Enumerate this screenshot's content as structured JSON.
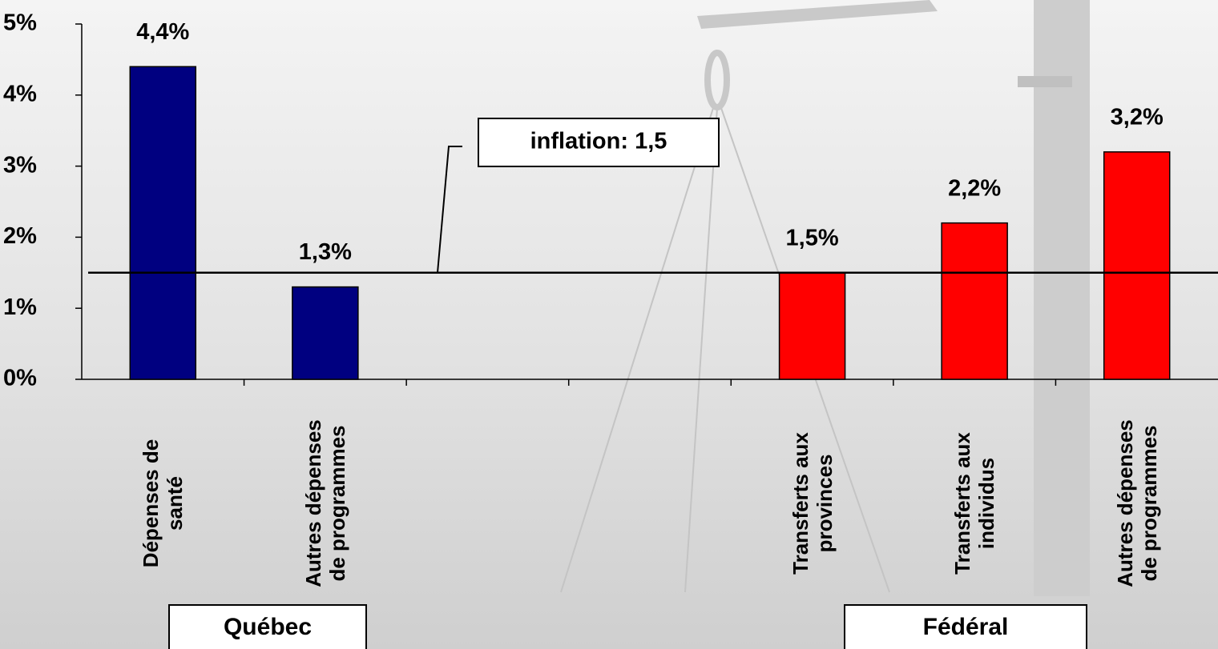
{
  "chart_data": {
    "type": "bar",
    "categories": [
      "Dépenses de santé",
      "Autres dépenses de programmes",
      null,
      null,
      "Transferts aux provinces",
      "Transferts aux individus",
      "Autres dépenses de programmes"
    ],
    "values": [
      4.4,
      1.3,
      null,
      null,
      1.5,
      2.2,
      3.2
    ],
    "value_labels": [
      "4,4%",
      "1,3%",
      null,
      null,
      "1,5%",
      "2,2%",
      "3,2%"
    ],
    "colors": [
      "#000080",
      "#000080",
      null,
      null,
      "#ff0000",
      "#ff0000",
      "#ff0000"
    ],
    "ylim": [
      0,
      5
    ],
    "yticks": [
      {
        "value": 0,
        "label": "0%"
      },
      {
        "value": 1,
        "label": "1%"
      },
      {
        "value": 2,
        "label": "2%"
      },
      {
        "value": 3,
        "label": "3%"
      },
      {
        "value": 4,
        "label": "4%"
      },
      {
        "value": 5,
        "label": "5%"
      }
    ],
    "reference_line": {
      "value": 1.5,
      "label": "inflation: 1,5"
    },
    "groups": [
      "Québec",
      "Fédéral"
    ]
  }
}
